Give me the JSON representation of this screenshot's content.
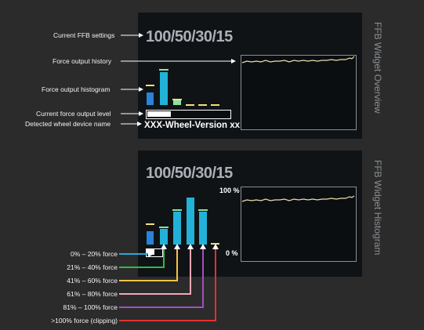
{
  "overview": {
    "title": "FFB Widget Overview",
    "settings": "100/50/30/15",
    "device_name": "XXX-Wheel-Version xx",
    "callouts": [
      "Current FFB settings",
      "Force output history",
      "Force output histogram",
      "Current force output level",
      "Detected wheel device name"
    ]
  },
  "histogram": {
    "title": "FFB Widget Histogram",
    "settings": "100/50/30/15",
    "top_pct": "100 %",
    "bottom_pct": "0 %",
    "legend": [
      {
        "label": "0% – 20% force",
        "color": "#2aa7e0"
      },
      {
        "label": "21% – 40% force",
        "color": "#3ab54a"
      },
      {
        "label": "41% – 60% force",
        "color": "#f6c343"
      },
      {
        "label": "61% – 80% force",
        "color": "#f4a6b7"
      },
      {
        "label": "81% – 100% force",
        "color": "#a24fc2"
      },
      {
        "label": ">100% force (clipping)",
        "color": "#e53030"
      }
    ]
  },
  "colors": {
    "bar_blue": "#2a83d8",
    "bar_cyan": "#22b2d8",
    "cap_yellow": "#f3df7a",
    "cap_green": "#8fe1a2",
    "history_line": "#e9dfb0"
  }
}
